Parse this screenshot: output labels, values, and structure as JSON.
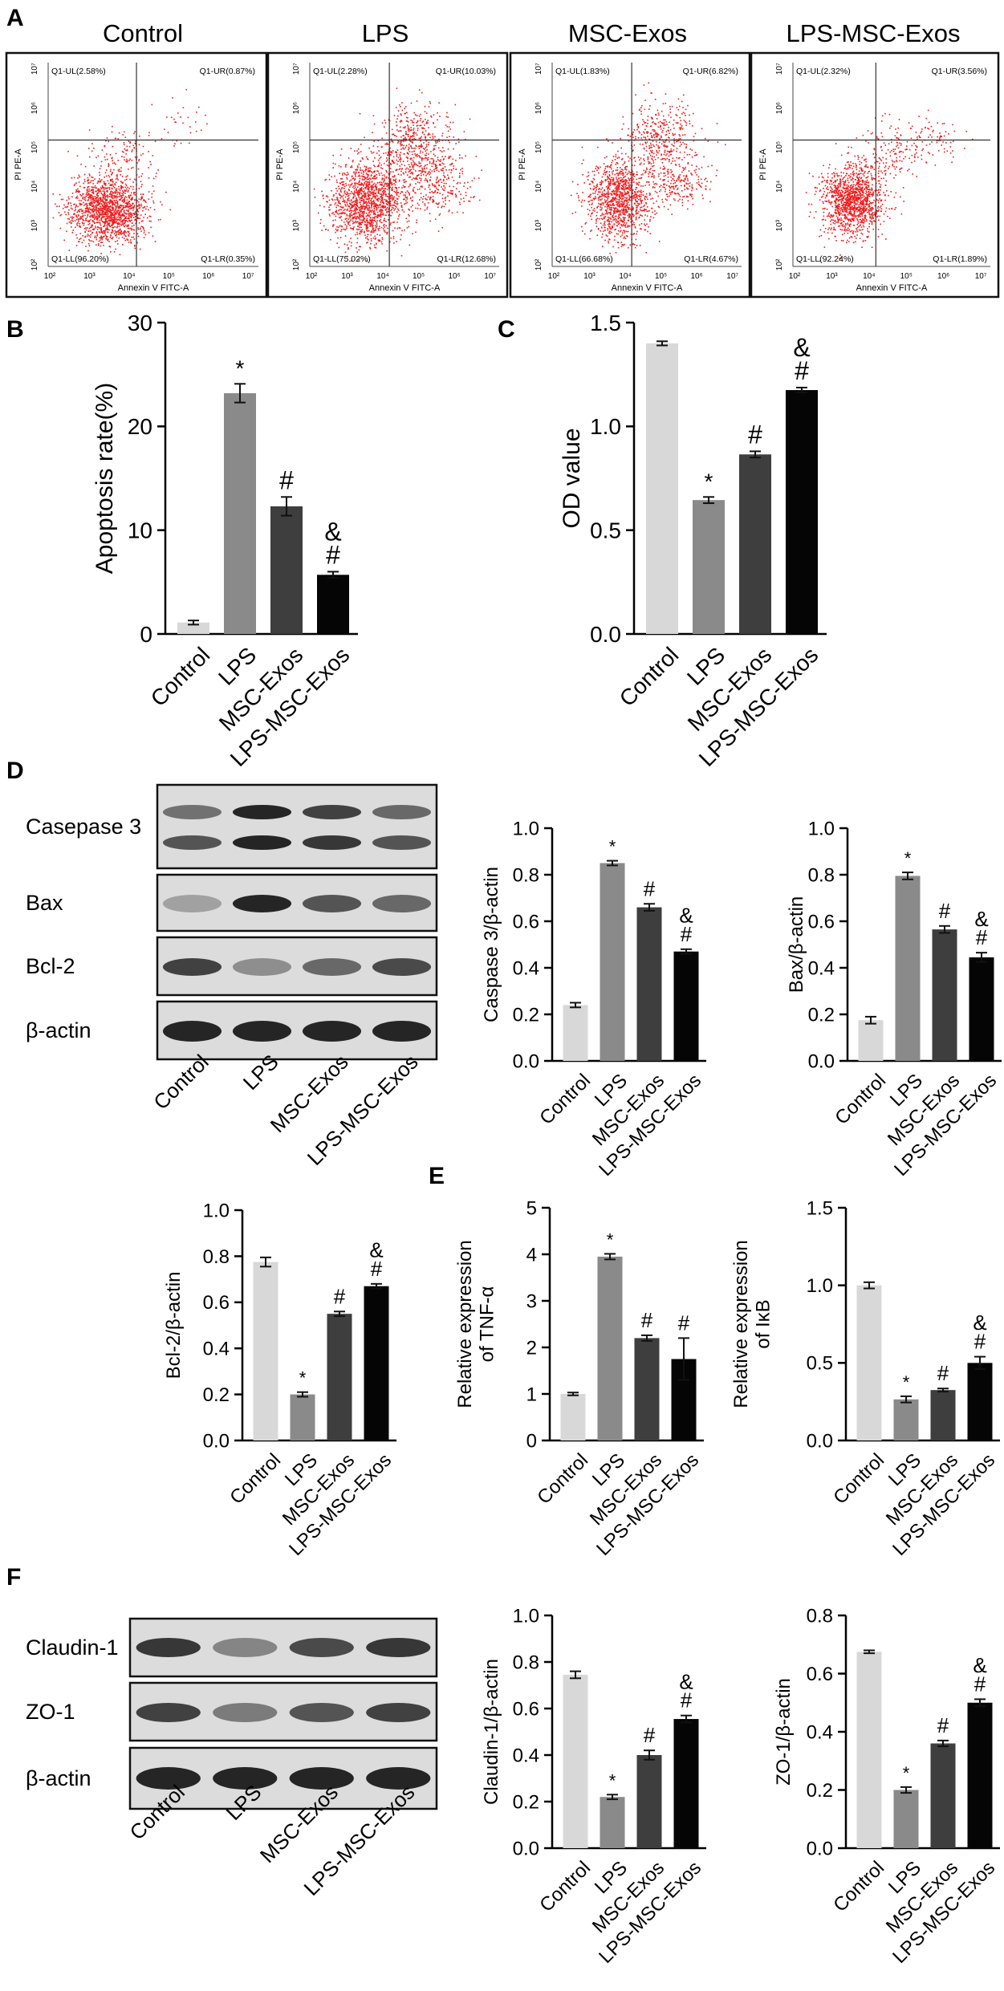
{
  "panels": {
    "A": "A",
    "B": "B",
    "C": "C",
    "D": "D",
    "E": "E",
    "F": "F"
  },
  "colors": {
    "control": "#d8d8d8",
    "lps": "#8a8a8a",
    "msc": "#3e3e3e",
    "lpsmsc": "#050505",
    "dots": "#ee1c1c"
  },
  "flow": {
    "xlabel": "Annexin  V FITC-A",
    "ylabel": "PI PE-A",
    "tick_labels": [
      "10²",
      "10³",
      "10⁴",
      "10⁵",
      "10⁶",
      "10⁷"
    ],
    "plots": [
      {
        "title": "Control",
        "ul": "Q1-UL(2.58%)",
        "ur": "Q1-UR(0.87%)",
        "ll": "Q1-LL(96.20%)",
        "lr": "Q1-LR(0.35%)"
      },
      {
        "title": "LPS",
        "ul": "Q1-UL(2.28%)",
        "ur": "Q1-UR(10.03%)",
        "ll": "Q1-LL(75.02%)",
        "lr": "Q1-LR(12.68%)"
      },
      {
        "title": "MSC-Exos",
        "ul": "Q1-UL(1.83%)",
        "ur": "Q1-UR(6.82%)",
        "ll": "Q1-LL(66.68%)",
        "lr": "Q1-LR(4.67%)"
      },
      {
        "title": "LPS-MSC-Exos",
        "ul": "Q1-UL(2.32%)",
        "ur": "Q1-UR(3.56%)",
        "ll": "Q1-LL(92.24%)",
        "lr": "Q1-LR(1.89%)"
      }
    ]
  },
  "blots": {
    "D": {
      "labels": [
        "Casepase 3",
        "Bax",
        "Bcl-2",
        "β-actin"
      ],
      "lanes": [
        "Control",
        "LPS",
        "MSC-Exos",
        "LPS-MSC-Exos"
      ]
    },
    "F": {
      "labels": [
        "Claudin-1",
        "ZO-1",
        "β-actin"
      ],
      "lanes": [
        "Control",
        "LPS",
        "MSC-Exos",
        "LPS-MSC-Exos"
      ]
    }
  },
  "chart_data": [
    {
      "id": "B",
      "type": "bar",
      "categories": [
        "Control",
        "LPS",
        "MSC-Exos",
        "LPS-MSC-Exos"
      ],
      "values": [
        1.1,
        23.2,
        12.3,
        5.7
      ],
      "errors": [
        0.2,
        0.9,
        0.9,
        0.3
      ],
      "marks": [
        "",
        "*",
        "#",
        "&\n#"
      ],
      "ylabel": "Apoptosis rate(%)",
      "ylim": [
        0,
        30
      ],
      "yticks": [
        "0",
        "10",
        "20",
        "30"
      ]
    },
    {
      "id": "C",
      "type": "bar",
      "categories": [
        "Control",
        "LPS",
        "MSC-Exos",
        "LPS-MSC-Exos"
      ],
      "values": [
        1.4,
        0.645,
        0.865,
        1.175
      ],
      "errors": [
        0.01,
        0.015,
        0.015,
        0.012
      ],
      "marks": [
        "",
        "*",
        "#",
        "&\n#"
      ],
      "ylabel": "OD value",
      "ylim": [
        0,
        1.5
      ],
      "yticks": [
        "0.0",
        "0.5",
        "1.0",
        "1.5"
      ]
    },
    {
      "id": "D1",
      "type": "bar",
      "categories": [
        "Control",
        "LPS",
        "MSC-Exos",
        "LPS-MSC-Exos"
      ],
      "values": [
        0.24,
        0.85,
        0.66,
        0.47
      ],
      "errors": [
        0.01,
        0.01,
        0.015,
        0.01
      ],
      "marks": [
        "",
        "*",
        "#",
        "&\n#"
      ],
      "ylabel": "Caspase 3/β-actin",
      "ylim": [
        0,
        1
      ],
      "yticks": [
        "0.0",
        "0.2",
        "0.4",
        "0.6",
        "0.8",
        "1.0"
      ]
    },
    {
      "id": "D2",
      "type": "bar",
      "categories": [
        "Control",
        "LPS",
        "MSC-Exos",
        "LPS-MSC-Exos"
      ],
      "values": [
        0.175,
        0.795,
        0.565,
        0.445
      ],
      "errors": [
        0.015,
        0.015,
        0.015,
        0.02
      ],
      "marks": [
        "",
        "*",
        "#",
        "&\n#"
      ],
      "ylabel": "Bax/β-actin",
      "ylim": [
        0,
        1
      ],
      "yticks": [
        "0.0",
        "0.2",
        "0.4",
        "0.6",
        "0.8",
        "1.0"
      ]
    },
    {
      "id": "D3",
      "type": "bar",
      "categories": [
        "Control",
        "LPS",
        "MSC-Exos",
        "LPS-MSC-Exos"
      ],
      "values": [
        0.775,
        0.2,
        0.55,
        0.67
      ],
      "errors": [
        0.02,
        0.01,
        0.01,
        0.01
      ],
      "marks": [
        "",
        "*",
        "#",
        "&\n#"
      ],
      "ylabel": "Bcl-2/β-actin",
      "ylim": [
        0,
        1
      ],
      "yticks": [
        "0.0",
        "0.2",
        "0.4",
        "0.6",
        "0.8",
        "1.0"
      ]
    },
    {
      "id": "E1",
      "type": "bar",
      "categories": [
        "Control",
        "LPS",
        "MSC-Exos",
        "LPS-MSC-Exos"
      ],
      "values": [
        1.0,
        3.95,
        2.2,
        1.75
      ],
      "errors": [
        0.03,
        0.06,
        0.06,
        0.45
      ],
      "marks": [
        "",
        "*",
        "#",
        "#"
      ],
      "ylabel": "Relative expression\nof TNF-α",
      "ylim": [
        0,
        5
      ],
      "yticks": [
        "0",
        "1",
        "2",
        "3",
        "4",
        "5"
      ]
    },
    {
      "id": "E2",
      "type": "bar",
      "categories": [
        "Control",
        "LPS",
        "MSC-Exos",
        "LPS-MSC-Exos"
      ],
      "values": [
        1.0,
        0.265,
        0.325,
        0.5
      ],
      "errors": [
        0.02,
        0.02,
        0.01,
        0.04
      ],
      "marks": [
        "",
        "*",
        "#",
        "&\n#"
      ],
      "ylabel": "Relative expression\nof IκB",
      "ylim": [
        0,
        1.5
      ],
      "yticks": [
        "0.0",
        "0.5",
        "1.0",
        "1.5"
      ]
    },
    {
      "id": "F1",
      "type": "bar",
      "categories": [
        "Control",
        "LPS",
        "MSC-Exos",
        "LPS-MSC-Exos"
      ],
      "values": [
        0.745,
        0.22,
        0.4,
        0.555
      ],
      "errors": [
        0.015,
        0.01,
        0.02,
        0.015
      ],
      "marks": [
        "",
        "*",
        "#",
        "&\n#"
      ],
      "ylabel": "Claudin-1/β-actin",
      "ylim": [
        0,
        1
      ],
      "yticks": [
        "0.0",
        "0.2",
        "0.4",
        "0.6",
        "0.8",
        "1.0"
      ]
    },
    {
      "id": "F2",
      "type": "bar",
      "categories": [
        "Control",
        "LPS",
        "MSC-Exos",
        "LPS-MSC-Exos"
      ],
      "values": [
        0.675,
        0.2,
        0.36,
        0.5
      ],
      "errors": [
        0.005,
        0.01,
        0.01,
        0.012
      ],
      "marks": [
        "",
        "*",
        "#",
        "&\n#"
      ],
      "ylabel": "ZO-1/β-actin",
      "ylim": [
        0,
        0.8
      ],
      "yticks": [
        "0.0",
        "0.2",
        "0.4",
        "0.6",
        "0.8"
      ]
    }
  ]
}
